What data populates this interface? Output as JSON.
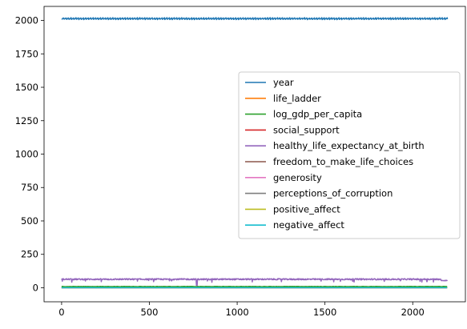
{
  "chart_data": {
    "type": "line",
    "title": "",
    "xlabel": "",
    "ylabel": "",
    "xlim": [
      -100,
      2300
    ],
    "ylim": [
      -105,
      2105
    ],
    "x_ticks": [
      0,
      500,
      1000,
      1500,
      2000
    ],
    "x_tick_labels": [
      "0",
      "500",
      "1000",
      "1500",
      "2000"
    ],
    "y_ticks": [
      0,
      250,
      500,
      750,
      1000,
      1250,
      1500,
      1750,
      2000
    ],
    "y_tick_labels": [
      "0",
      "250",
      "500",
      "750",
      "1000",
      "1250",
      "1500",
      "1750",
      "2000"
    ],
    "x_range": [
      0,
      2199
    ],
    "legend_position": "center-right",
    "series": [
      {
        "name": "year",
        "color": "#1f77b4",
        "base": 2014,
        "amp": 6,
        "pattern": "year"
      },
      {
        "name": "life_ladder",
        "color": "#ff7f0e",
        "base": 5.5,
        "amp": 1.1,
        "pattern": "noise"
      },
      {
        "name": "log_gdp_per_capita",
        "color": "#2ca02c",
        "base": 9.4,
        "amp": 1.2,
        "pattern": "noise"
      },
      {
        "name": "social_support",
        "color": "#d62728",
        "base": 0.81,
        "amp": 0.12,
        "pattern": "noise"
      },
      {
        "name": "healthy_life_expectancy_at_birth",
        "color": "#9467bd",
        "base": 63.5,
        "amp": 7,
        "pattern": "hle"
      },
      {
        "name": "freedom_to_make_life_choices",
        "color": "#8c564b",
        "base": 0.75,
        "amp": 0.14,
        "pattern": "noise"
      },
      {
        "name": "generosity",
        "color": "#e377c2",
        "base": 0.0,
        "amp": 0.16,
        "pattern": "noise"
      },
      {
        "name": "perceptions_of_corruption",
        "color": "#7f7f7f",
        "base": 0.74,
        "amp": 0.18,
        "pattern": "noise"
      },
      {
        "name": "positive_affect",
        "color": "#bcbd22",
        "base": 0.65,
        "amp": 0.1,
        "pattern": "noise"
      },
      {
        "name": "negative_affect",
        "color": "#17becf",
        "base": 0.27,
        "amp": 0.08,
        "pattern": "noise"
      }
    ]
  }
}
